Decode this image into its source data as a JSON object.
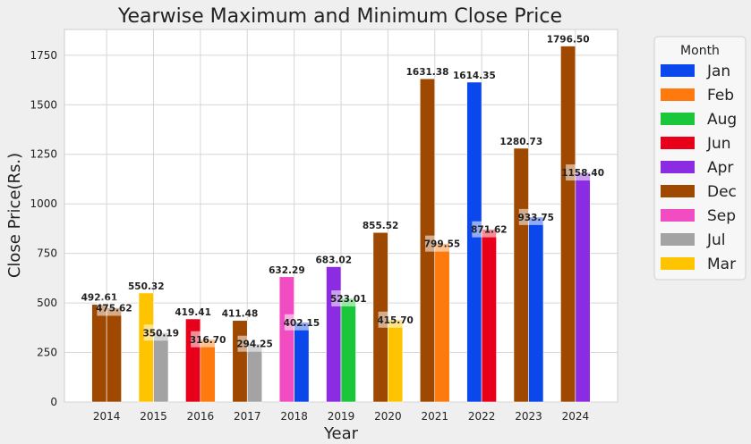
{
  "chart_data": {
    "type": "bar",
    "title": "Yearwise Maximum and Minimum Close Price",
    "xlabel": "Year",
    "ylabel": "Close Price(Rs.)",
    "ylim": [
      0,
      1880
    ],
    "yticks": [
      "0",
      "250",
      "500",
      "750",
      "1000",
      "1250",
      "1500",
      "1750"
    ],
    "grid": true,
    "legend_title": "Month",
    "legend_placement": "outside-right",
    "legend": [
      {
        "name": "Jan",
        "color": "#0a48ec"
      },
      {
        "name": "Feb",
        "color": "#fe7a0e"
      },
      {
        "name": "Aug",
        "color": "#1ac73b"
      },
      {
        "name": "Jun",
        "color": "#e8001b"
      },
      {
        "name": "Apr",
        "color": "#8b2be2"
      },
      {
        "name": "Dec",
        "color": "#9f4800"
      },
      {
        "name": "Sep",
        "color": "#f14cc1"
      },
      {
        "name": "Jul",
        "color": "#a3a3a3"
      },
      {
        "name": "Mar",
        "color": "#ffc400"
      }
    ],
    "categories": [
      "2014",
      "2015",
      "2016",
      "2017",
      "2018",
      "2019",
      "2020",
      "2021",
      "2022",
      "2023",
      "2024"
    ],
    "max_bars": [
      {
        "month": "Dec",
        "value": 492.61,
        "label": "492.61"
      },
      {
        "month": "Mar",
        "value": 550.32,
        "label": "550.32"
      },
      {
        "month": "Jun",
        "value": 419.41,
        "label": "419.41"
      },
      {
        "month": "Dec",
        "value": 411.48,
        "label": "411.48"
      },
      {
        "month": "Sep",
        "value": 632.29,
        "label": "632.29"
      },
      {
        "month": "Apr",
        "value": 683.02,
        "label": "683.02"
      },
      {
        "month": "Dec",
        "value": 855.52,
        "label": "855.52"
      },
      {
        "month": "Dec",
        "value": 1631.38,
        "label": "1631.38"
      },
      {
        "month": "Jan",
        "value": 1614.35,
        "label": "1614.35"
      },
      {
        "month": "Dec",
        "value": 1280.73,
        "label": "1280.73"
      },
      {
        "month": "Dec",
        "value": 1796.5,
        "label": "1796.50"
      }
    ],
    "min_bars": [
      {
        "month": "Dec",
        "value": 475.62,
        "label": "475.62"
      },
      {
        "month": "Jul",
        "value": 350.19,
        "label": "350.19"
      },
      {
        "month": "Feb",
        "value": 316.7,
        "label": "316.70"
      },
      {
        "month": "Jul",
        "value": 294.25,
        "label": "294.25"
      },
      {
        "month": "Jan",
        "value": 402.15,
        "label": "402.15"
      },
      {
        "month": "Aug",
        "value": 523.01,
        "label": "523.01"
      },
      {
        "month": "Mar",
        "value": 415.7,
        "label": "415.70"
      },
      {
        "month": "Feb",
        "value": 799.55,
        "label": "799.55"
      },
      {
        "month": "Jun",
        "value": 871.62,
        "label": "871.62"
      },
      {
        "month": "Jan",
        "value": 933.75,
        "label": "933.75"
      },
      {
        "month": "Apr",
        "value": 1158.4,
        "label": "1158.40"
      }
    ]
  }
}
